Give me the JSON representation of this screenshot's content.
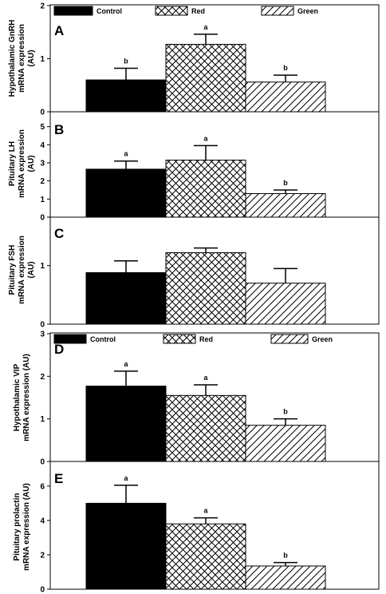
{
  "legend_top": [
    "Control",
    "Red",
    "Green"
  ],
  "legend_bottom": [
    "Control",
    "Red",
    "Green"
  ],
  "chart_data": [
    {
      "type": "bar",
      "letter": "A",
      "ylabel": [
        "Hypothalamic GnRH",
        "mRNA expression",
        "(AU)"
      ],
      "categories": [
        "Control",
        "Red",
        "Green"
      ],
      "values": [
        0.6,
        1.27,
        0.56
      ],
      "errors": [
        0.22,
        0.19,
        0.13
      ],
      "significance": [
        "b",
        "a",
        "b"
      ],
      "ylim": [
        0,
        2
      ],
      "yticks": [
        0,
        1,
        2
      ]
    },
    {
      "type": "bar",
      "letter": "B",
      "ylabel": [
        "Pituitary LH",
        "mRNA expression",
        "(AU)"
      ],
      "categories": [
        "Control",
        "Red",
        "Green"
      ],
      "values": [
        2.65,
        3.15,
        1.3
      ],
      "errors": [
        0.45,
        0.8,
        0.2
      ],
      "significance": [
        "a",
        "a",
        "b"
      ],
      "ylim": [
        0,
        5.6
      ],
      "yticks": [
        0,
        1,
        2,
        3,
        4,
        5
      ]
    },
    {
      "type": "bar",
      "letter": "C",
      "ylabel": [
        "Pituitary FSH",
        "mRNA expression",
        "(AU)"
      ],
      "categories": [
        "Control",
        "Red",
        "Green"
      ],
      "values": [
        0.88,
        1.22,
        0.7
      ],
      "errors": [
        0.2,
        0.08,
        0.25
      ],
      "significance": [
        "",
        "",
        ""
      ],
      "ylim": [
        0,
        1.8
      ],
      "yticks": [
        0,
        1
      ]
    },
    {
      "type": "bar",
      "letter": "D",
      "ylabel": [
        "Hypothalamic VIP",
        "mRNA expression (AU)"
      ],
      "categories": [
        "Control",
        "Red",
        "Green"
      ],
      "values": [
        1.77,
        1.55,
        0.85
      ],
      "errors": [
        0.35,
        0.25,
        0.15
      ],
      "significance": [
        "a",
        "a",
        "b"
      ],
      "ylim": [
        0,
        3
      ],
      "yticks": [
        0,
        1,
        2,
        3
      ]
    },
    {
      "type": "bar",
      "letter": "E",
      "ylabel": [
        "Pituitary prolactin",
        "mRNA expression (AU)"
      ],
      "categories": [
        "Control",
        "Red",
        "Green"
      ],
      "values": [
        5.0,
        3.8,
        1.35
      ],
      "errors": [
        1.05,
        0.35,
        0.2
      ],
      "significance": [
        "a",
        "a",
        "b"
      ],
      "ylim": [
        0,
        7.2
      ],
      "yticks": [
        0,
        2,
        4,
        6
      ]
    }
  ]
}
